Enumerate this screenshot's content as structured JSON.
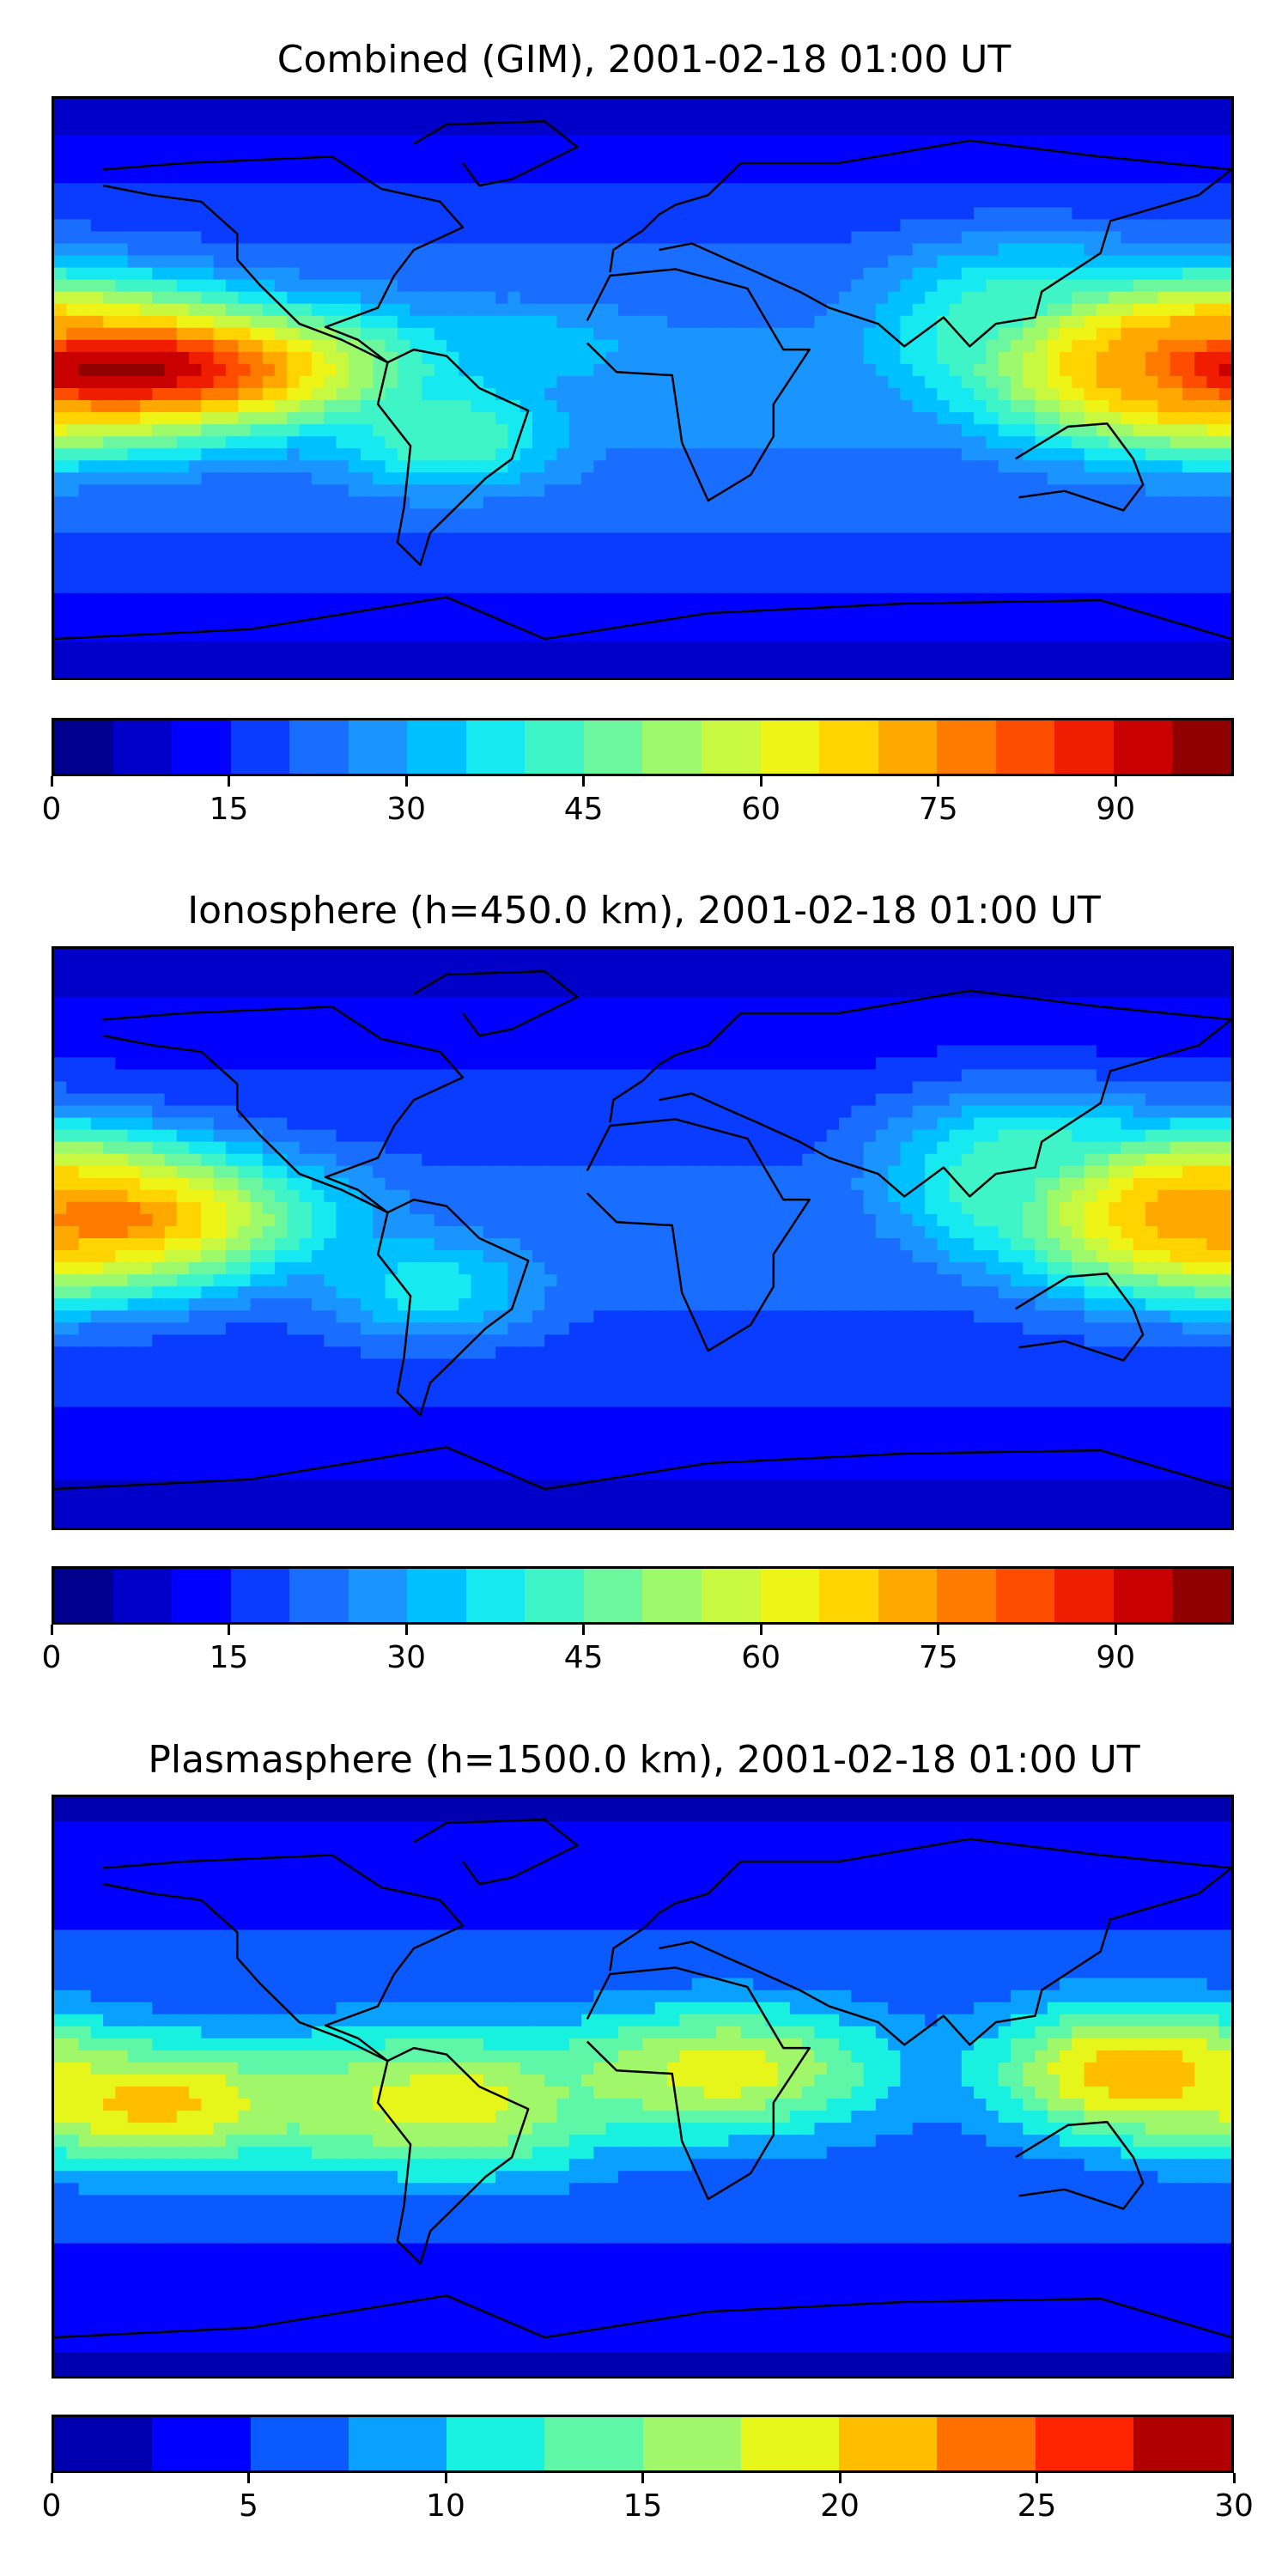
{
  "chart_data": [
    {
      "type": "heatmap",
      "title": "Combined (GIM), 2001-02-18 01:00 UT",
      "colormap": "jet",
      "colorbar": {
        "min": 0,
        "max": 100,
        "step": 5,
        "ticks": [
          0,
          15,
          30,
          45,
          60,
          75,
          90
        ],
        "colors": [
          "#00008f",
          "#0000c8",
          "#0000ff",
          "#0a3cff",
          "#1a6eff",
          "#1a95ff",
          "#00c0ff",
          "#17e9f0",
          "#3ff5c8",
          "#6cf79e",
          "#9ef96b",
          "#c8f83f",
          "#eef516",
          "#ffd400",
          "#ffa800",
          "#ff7b00",
          "#ff4d00",
          "#f01d00",
          "#c80000",
          "#900000"
        ]
      },
      "hotspots": [
        {
          "lon": -160,
          "lat": 6,
          "value": 97,
          "spread_lon": 55,
          "spread_lat": 14
        },
        {
          "lon": 170,
          "lat": 8,
          "value": 76,
          "spread_lon": 40,
          "spread_lat": 18
        },
        {
          "lon": 115,
          "lat": 20,
          "value": 45,
          "spread_lon": 30,
          "spread_lat": 18
        },
        {
          "lon": -60,
          "lat": -15,
          "value": 45,
          "spread_lon": 25,
          "spread_lat": 12
        },
        {
          "lon": -40,
          "lat": 12,
          "value": 35,
          "spread_lon": 30,
          "spread_lat": 10
        }
      ],
      "background_value": 20
    },
    {
      "type": "heatmap",
      "title": "Ionosphere  (h=450.0 km), 2001-02-18 01:00 UT",
      "colormap": "jet",
      "colorbar": {
        "min": 0,
        "max": 100,
        "step": 5,
        "ticks": [
          0,
          15,
          30,
          45,
          60,
          75,
          90
        ],
        "colors": [
          "#00008f",
          "#0000c8",
          "#0000ff",
          "#0a3cff",
          "#1a6eff",
          "#1a95ff",
          "#00c0ff",
          "#17e9f0",
          "#3ff5c8",
          "#6cf79e",
          "#9ef96b",
          "#c8f83f",
          "#eef516",
          "#ffd400",
          "#ffa800",
          "#ff7b00",
          "#ff4d00",
          "#f01d00",
          "#c80000",
          "#900000"
        ]
      },
      "hotspots": [
        {
          "lon": -165,
          "lat": 6,
          "value": 78,
          "spread_lon": 45,
          "spread_lat": 14
        },
        {
          "lon": 172,
          "lat": 8,
          "value": 72,
          "spread_lon": 40,
          "spread_lat": 18
        },
        {
          "lon": 115,
          "lat": 20,
          "value": 45,
          "spread_lon": 30,
          "spread_lat": 18
        },
        {
          "lon": -65,
          "lat": -15,
          "value": 38,
          "spread_lon": 25,
          "spread_lat": 12
        }
      ],
      "background_value": 15
    },
    {
      "type": "heatmap",
      "title": "Plasmasphere (h=1500.0 km), 2001-02-18 01:00 UT",
      "colormap": "jet",
      "colorbar": {
        "min": 0,
        "max": 30,
        "step": 2.5,
        "ticks": [
          0,
          5,
          10,
          15,
          20,
          25,
          30
        ],
        "colors": [
          "#0000b0",
          "#0000ff",
          "#0a5aff",
          "#0aa0ff",
          "#18f0e0",
          "#5ef7a8",
          "#a0f76a",
          "#e6f51a",
          "#ffbf00",
          "#ff7000",
          "#ff2500",
          "#b00000"
        ]
      },
      "hotspots": [
        {
          "lon": -150,
          "lat": -5,
          "value": 21,
          "spread_lon": 40,
          "spread_lat": 14
        },
        {
          "lon": -60,
          "lat": -5,
          "value": 19,
          "spread_lon": 40,
          "spread_lat": 16
        },
        {
          "lon": 25,
          "lat": 5,
          "value": 19,
          "spread_lon": 35,
          "spread_lat": 14
        },
        {
          "lon": 150,
          "lat": 5,
          "value": 22,
          "spread_lon": 30,
          "spread_lat": 14
        }
      ],
      "background_value": 5
    }
  ]
}
